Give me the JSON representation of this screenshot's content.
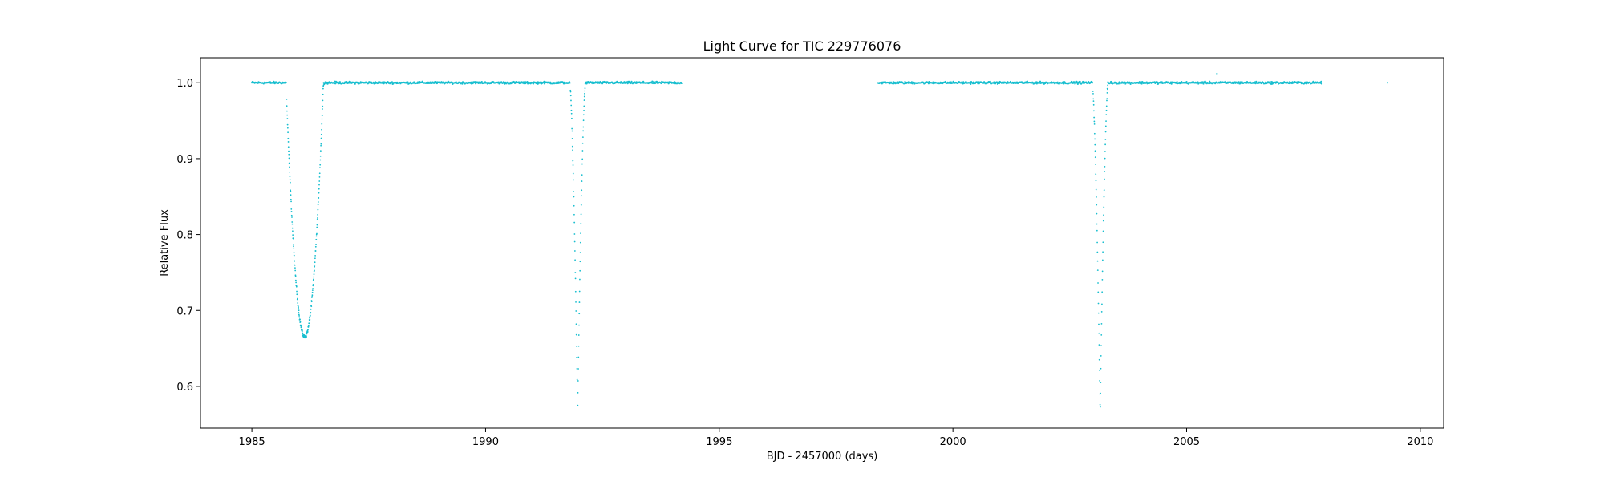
{
  "chart_data": {
    "type": "scatter",
    "title": "Light Curve for TIC 229776076",
    "xlabel": "BJD - 2457000 (days)",
    "ylabel": "Relative Flux",
    "xlim": [
      1983.9,
      2010.5
    ],
    "ylim": [
      0.545,
      1.033
    ],
    "x_ticks": [
      1985,
      1990,
      1995,
      2000,
      2005,
      2010
    ],
    "y_ticks": [
      0.6,
      0.7,
      0.8,
      0.9,
      1.0
    ],
    "y_tick_labels": [
      "0.6",
      "0.7",
      "0.8",
      "0.9",
      "1.0"
    ],
    "grid": false,
    "marker_color": "#17becf",
    "series": [
      {
        "segments": [
          {
            "x_range": [
              1985.0,
              1994.2
            ],
            "baseline": 1.0
          },
          {
            "x_range": [
              1998.4,
              2007.9
            ],
            "baseline": 1.0
          }
        ],
        "eclipses": [
          {
            "kind": "primary-wide",
            "center": 1986.13,
            "half_width": 0.4,
            "min_flux": 0.665
          },
          {
            "kind": "secondary-deep",
            "center": 1991.97,
            "half_width": 0.17,
            "min_flux": 0.567
          },
          {
            "kind": "secondary-deep",
            "center": 2003.15,
            "half_width": 0.17,
            "min_flux": 0.567
          }
        ],
        "isolated_points": [
          {
            "x": 2005.65,
            "y": 1.012
          },
          {
            "x": 2009.3,
            "y": 1.0
          }
        ]
      }
    ]
  }
}
